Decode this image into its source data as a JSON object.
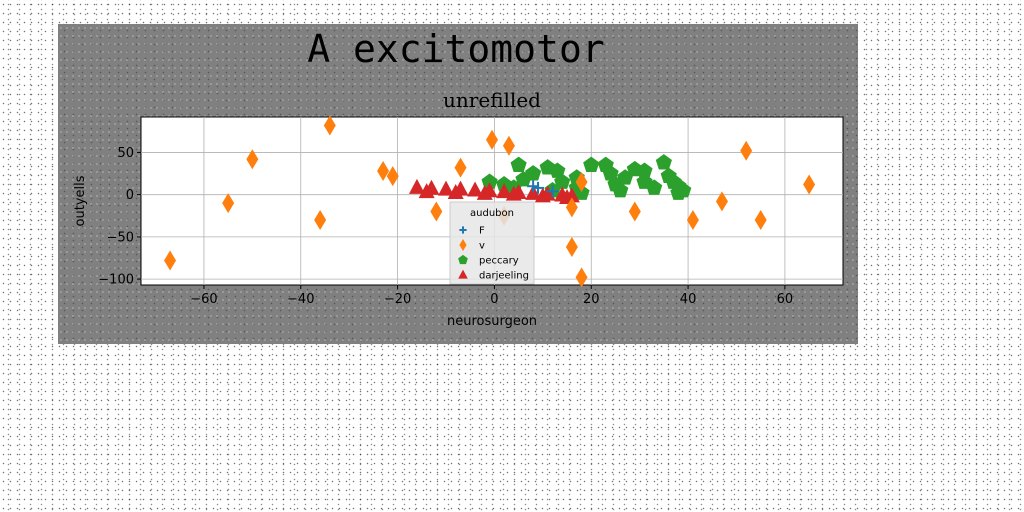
{
  "chart_data": {
    "type": "scatter",
    "title": "A excitomotor",
    "subtitle": "unrefilled",
    "xlabel": "neurosurgeon",
    "ylabel": "outyells",
    "xlim": [
      -73,
      72
    ],
    "ylim": [
      -107,
      92
    ],
    "xticks": [
      -60,
      -40,
      -20,
      0,
      20,
      40,
      60
    ],
    "yticks": [
      -100,
      -50,
      0,
      50
    ],
    "grid": true,
    "legend": {
      "title": "audubon",
      "position": "lower-center"
    },
    "series": [
      {
        "name": "F",
        "marker": "plus",
        "color": "#1f77b4",
        "points": [
          [
            8,
            10
          ],
          [
            12,
            4
          ],
          [
            9,
            8
          ]
        ]
      },
      {
        "name": "v",
        "marker": "thin_diamond",
        "color": "#ff7f0e",
        "points": [
          [
            -67,
            -78
          ],
          [
            -55,
            -10
          ],
          [
            -50,
            42
          ],
          [
            -36,
            -30
          ],
          [
            -34,
            82
          ],
          [
            -23,
            28
          ],
          [
            -21,
            22
          ],
          [
            -12,
            -20
          ],
          [
            -7,
            32
          ],
          [
            -0.5,
            65
          ],
          [
            3,
            58
          ],
          [
            2,
            -25
          ],
          [
            16,
            -62
          ],
          [
            16,
            -15
          ],
          [
            18,
            -98
          ],
          [
            29,
            -20
          ],
          [
            41,
            -30
          ],
          [
            47,
            -8
          ],
          [
            52,
            52
          ],
          [
            55,
            -30
          ],
          [
            65,
            12
          ],
          [
            18,
            15
          ]
        ]
      },
      {
        "name": "peccary",
        "marker": "pentagon",
        "color": "#2ca02c",
        "points": [
          [
            -1,
            15
          ],
          [
            2,
            12
          ],
          [
            5,
            35
          ],
          [
            6,
            18
          ],
          [
            4,
            8
          ],
          [
            8,
            25
          ],
          [
            11,
            32
          ],
          [
            13,
            28
          ],
          [
            14,
            15
          ],
          [
            12,
            5
          ],
          [
            17,
            20
          ],
          [
            17,
            8
          ],
          [
            18,
            2
          ],
          [
            20,
            35
          ],
          [
            23,
            35
          ],
          [
            24,
            25
          ],
          [
            25,
            12
          ],
          [
            26,
            5
          ],
          [
            27,
            20
          ],
          [
            29,
            30
          ],
          [
            31,
            28
          ],
          [
            31,
            15
          ],
          [
            33,
            8
          ],
          [
            35,
            38
          ],
          [
            36,
            22
          ],
          [
            37,
            15
          ],
          [
            38,
            10
          ],
          [
            39,
            5
          ],
          [
            38,
            2
          ]
        ]
      },
      {
        "name": "darjeeling",
        "marker": "triangle_up",
        "color": "#d62728",
        "points": [
          [
            -16,
            8
          ],
          [
            -13,
            7
          ],
          [
            -10,
            6
          ],
          [
            -7,
            6
          ],
          [
            -4,
            5
          ],
          [
            -1,
            4
          ],
          [
            2,
            3
          ],
          [
            5,
            2
          ],
          [
            8,
            1
          ],
          [
            11,
            0
          ],
          [
            14,
            -1
          ],
          [
            16,
            -2
          ],
          [
            -14,
            3
          ],
          [
            -8,
            2
          ],
          [
            -2,
            1
          ],
          [
            4,
            0
          ],
          [
            10,
            -2
          ],
          [
            15,
            -4
          ]
        ]
      }
    ]
  }
}
